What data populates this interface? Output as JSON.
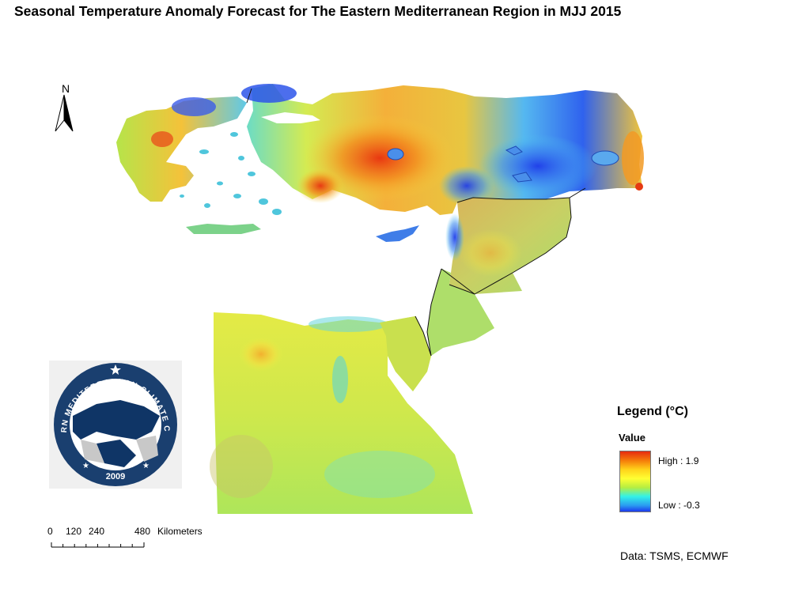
{
  "title": "Seasonal Temperature Anomaly Forecast for The Eastern Mediterranean Region in MJJ 2015",
  "north_arrow": {
    "letter": "N"
  },
  "logo": {
    "ring_text": "EASTERN MEDITERRANEAN CLIMATE CENTRE",
    "year": "2009",
    "colors": {
      "ring": "#1a3f6f",
      "land": "#0f3566",
      "sea": "#ffffff",
      "other": "#c8c8c8"
    }
  },
  "scale": {
    "ticks": [
      "0",
      "120",
      "240",
      "480"
    ],
    "unit": "Kilometers"
  },
  "legend": {
    "title": "Legend (°C)",
    "subtitle": "Value",
    "high_label": "High : 1.9",
    "low_label": "Low : -0.3",
    "high_value": 1.9,
    "low_value": -0.3,
    "ramp_colors": [
      "#e62b10",
      "#f57c0a",
      "#ffd21a",
      "#ffff33",
      "#b6ee40",
      "#33f2e8",
      "#2a9bf0",
      "#1c3aee"
    ]
  },
  "credit": "Data: TSMS, ECMWF",
  "colors": {
    "hot": "#e63a12",
    "warm": "#f7a21a",
    "yellow": "#f4e93a",
    "green": "#b9e052",
    "cyan": "#47d9d4",
    "blue": "#2e6df0",
    "deepblue": "#1f36e8",
    "border": "#111111"
  }
}
